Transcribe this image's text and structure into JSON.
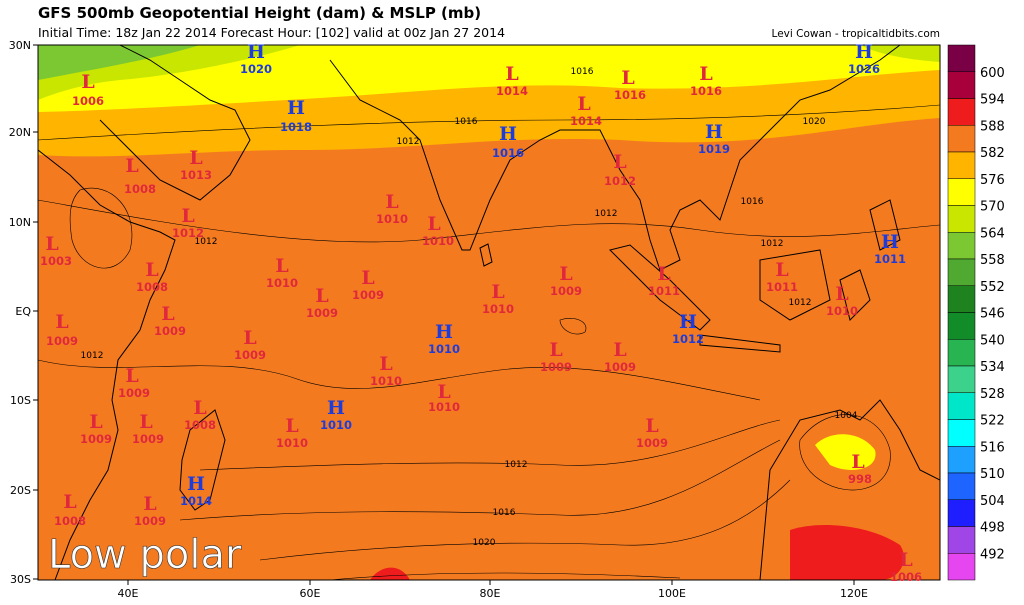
{
  "header": {
    "title": "GFS 500mb Geopotential Height (dam) & MSLP (mb)",
    "subtitle": "Initial Time: 18z Jan 22 2014 Forecast Hour: [102] valid at 00z Jan 27 2014",
    "credit": "Levi Cowan - tropicaltidbits.com"
  },
  "map": {
    "lat_labels": [
      "30N",
      "20N",
      "10N",
      "EQ",
      "10S",
      "20S",
      "30S"
    ],
    "lon_labels": [
      "40E",
      "60E",
      "80E",
      "100E",
      "120E"
    ],
    "overlay_text": "Low polar",
    "systems": [
      {
        "letter": "L",
        "pressure": 1006
      },
      {
        "letter": "H",
        "pressure": 1020
      },
      {
        "letter": "H",
        "pressure": 1018
      },
      {
        "letter": "L",
        "pressure": 1014
      },
      {
        "letter": "L",
        "pressure": 1016
      },
      {
        "letter": "L",
        "pressure": 1016
      },
      {
        "letter": "H",
        "pressure": 1026
      },
      {
        "letter": "L",
        "pressure": 1014
      },
      {
        "letter": "H",
        "pressure": 1016
      },
      {
        "letter": "H",
        "pressure": 1019
      },
      {
        "letter": "L",
        "pressure": 1008
      },
      {
        "letter": "L",
        "pressure": 1013
      },
      {
        "letter": "L",
        "pressure": 1012
      },
      {
        "letter": "L",
        "pressure": 1012
      },
      {
        "letter": "L",
        "pressure": 1010
      },
      {
        "letter": "L",
        "pressure": 1010
      },
      {
        "letter": "L",
        "pressure": 1003
      },
      {
        "letter": "H",
        "pressure": 1011
      },
      {
        "letter": "L",
        "pressure": 1010
      },
      {
        "letter": "L",
        "pressure": 1008
      },
      {
        "letter": "L",
        "pressure": 1009
      },
      {
        "letter": "L",
        "pressure": 1009
      },
      {
        "letter": "L",
        "pressure": 1010
      },
      {
        "letter": "L",
        "pressure": 1009
      },
      {
        "letter": "L",
        "pressure": 1011
      },
      {
        "letter": "L",
        "pressure": 1011
      },
      {
        "letter": "L",
        "pressure": 1010
      },
      {
        "letter": "L",
        "pressure": 1009
      },
      {
        "letter": "L",
        "pressure": 1009
      },
      {
        "letter": "L",
        "pressure": 1009
      },
      {
        "letter": "H",
        "pressure": 1010
      },
      {
        "letter": "H",
        "pressure": 1012
      },
      {
        "letter": "L",
        "pressure": 1009
      },
      {
        "letter": "L",
        "pressure": 1009
      },
      {
        "letter": "L",
        "pressure": 1010
      },
      {
        "letter": "L",
        "pressure": 1009
      },
      {
        "letter": "L",
        "pressure": 1010
      },
      {
        "letter": "H",
        "pressure": 1010
      },
      {
        "letter": "L",
        "pressure": 1008
      },
      {
        "letter": "L",
        "pressure": 1009
      },
      {
        "letter": "L",
        "pressure": 1009
      },
      {
        "letter": "L",
        "pressure": 1010
      },
      {
        "letter": "L",
        "pressure": 1009
      },
      {
        "letter": "H",
        "pressure": 1014
      },
      {
        "letter": "L",
        "pressure": 998
      },
      {
        "letter": "L",
        "pressure": 1008
      },
      {
        "letter": "L",
        "pressure": 1009
      },
      {
        "letter": "L",
        "pressure": 1006
      }
    ],
    "isobar_labels": [
      1016,
      1016,
      1012,
      1020,
      1016,
      1012,
      1012,
      1012,
      1012,
      1012,
      1004,
      1012,
      1016,
      1020
    ]
  },
  "colorbar": {
    "levels": [
      600,
      594,
      588,
      582,
      576,
      570,
      564,
      558,
      552,
      546,
      540,
      534,
      528,
      522,
      516,
      510,
      504,
      498,
      492
    ],
    "colors": [
      "#7a0045",
      "#a8003a",
      "#ee1c1c",
      "#f47a20",
      "#ffb400",
      "#ffff00",
      "#c8e600",
      "#7cc832",
      "#50aa32",
      "#1e821e",
      "#128c28",
      "#28b450",
      "#3cd28c",
      "#00e6c8",
      "#00ffff",
      "#1ea0ff",
      "#1e64ff",
      "#1e1eff",
      "#a046e6",
      "#e646f0"
    ]
  }
}
